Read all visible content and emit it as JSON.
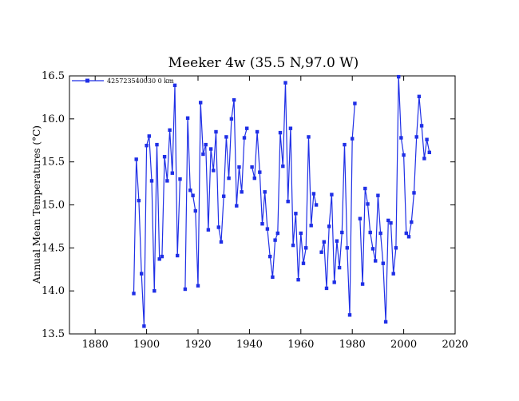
{
  "chart_data": {
    "type": "line",
    "title": "Meeker 4w (35.5 N,97.0 W)",
    "xlabel": "",
    "ylabel": "Annual Mean Temperatures (°C)",
    "xlim": [
      1870,
      2020
    ],
    "ylim": [
      13.5,
      16.5
    ],
    "xticks": [
      1880,
      1900,
      1920,
      1940,
      1960,
      1980,
      2000,
      2020
    ],
    "yticks": [
      13.5,
      14.0,
      14.5,
      15.0,
      15.5,
      16.0,
      16.5
    ],
    "grid": false,
    "legend_position": "top-left",
    "colors": {
      "series": "#1f2fe6"
    },
    "series": [
      {
        "name": "425723540030  0  km",
        "x": [
          1895,
          1896,
          1897,
          1898,
          1899,
          1900,
          1901,
          1902,
          1903,
          1904,
          1905,
          1906,
          1907,
          1908,
          1909,
          1910,
          1911,
          1912,
          1913,
          1914,
          1915,
          1916,
          1917,
          1918,
          1919,
          1920,
          1921,
          1922,
          1923,
          1924,
          1925,
          1926,
          1927,
          1928,
          1929,
          1930,
          1931,
          1932,
          1933,
          1934,
          1935,
          1936,
          1937,
          1938,
          1939,
          1940,
          1941,
          1942,
          1943,
          1944,
          1945,
          1946,
          1947,
          1948,
          1949,
          1950,
          1951,
          1952,
          1953,
          1954,
          1955,
          1956,
          1957,
          1958,
          1959,
          1960,
          1961,
          1962,
          1963,
          1964,
          1965,
          1966,
          1967,
          1968,
          1969,
          1970,
          1971,
          1972,
          1973,
          1974,
          1975,
          1976,
          1977,
          1978,
          1979,
          1980,
          1981,
          1982,
          1983,
          1984,
          1985,
          1986,
          1987,
          1988,
          1989,
          1990,
          1991,
          1992,
          1993,
          1994,
          1995,
          1996,
          1997,
          1998,
          1999,
          2000,
          2001,
          2002,
          2003,
          2004,
          2005,
          2006,
          2007,
          2008,
          2009,
          2010
        ],
        "y": [
          13.97,
          15.53,
          15.05,
          14.2,
          13.59,
          15.69,
          15.8,
          15.28,
          14.0,
          15.7,
          14.37,
          14.4,
          15.56,
          15.28,
          15.87,
          15.37,
          16.39,
          14.41,
          15.3,
          null,
          14.02,
          16.01,
          15.17,
          15.11,
          14.93,
          14.06,
          16.19,
          15.59,
          15.7,
          14.71,
          15.65,
          15.4,
          15.85,
          14.74,
          14.57,
          15.1,
          15.79,
          15.31,
          16.0,
          16.22,
          14.99,
          15.44,
          15.15,
          15.78,
          15.89,
          null,
          15.44,
          15.31,
          15.85,
          15.38,
          14.78,
          15.15,
          14.72,
          14.4,
          14.16,
          14.59,
          14.67,
          15.84,
          15.45,
          16.42,
          15.04,
          15.89,
          14.53,
          14.9,
          14.13,
          14.67,
          14.32,
          14.5,
          15.79,
          14.76,
          15.13,
          15.0,
          null,
          14.45,
          14.57,
          14.03,
          14.75,
          15.12,
          14.1,
          14.58,
          14.27,
          14.68,
          15.7,
          14.5,
          13.72,
          15.77,
          16.18,
          null,
          14.84,
          14.08,
          15.19,
          15.01,
          14.68,
          14.49,
          14.35,
          15.11,
          14.67,
          14.32,
          13.64,
          14.82,
          14.79,
          14.2,
          14.5,
          16.49,
          15.78,
          15.58,
          14.67,
          14.63,
          14.8,
          15.14,
          15.79,
          16.26,
          15.92,
          15.54,
          15.76,
          15.61
        ]
      }
    ]
  }
}
